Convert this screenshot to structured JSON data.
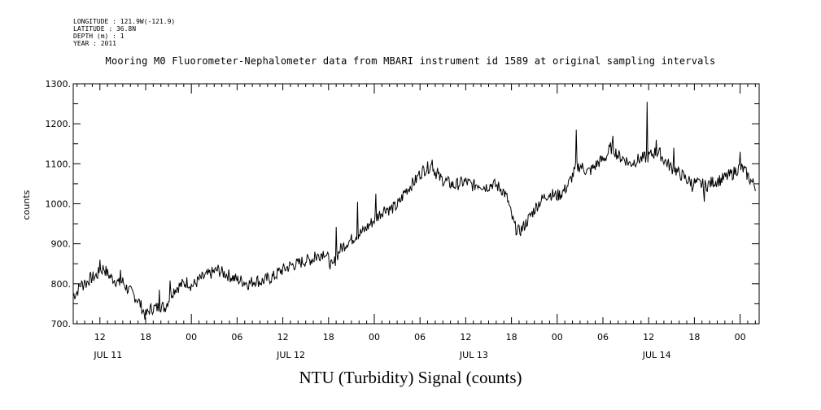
{
  "header": {
    "longitude": "LONGITUDE : 121.9W(-121.9)",
    "latitude": "LATITUDE : 36.8N",
    "depth": "DEPTH (m) : 1",
    "year": "YEAR : 2011"
  },
  "chart_data": {
    "type": "line",
    "title": "Mooring M0 Fluorometer-Nephalometer data from MBARI instrument id 1589 at original sampling intervals",
    "xlabel": "NTU (Turbidity) Signal (counts)",
    "ylabel": "counts",
    "ylim": [
      700,
      1300
    ],
    "yticks": [
      "700.",
      "800.",
      "900.",
      "1000.",
      "1100.",
      "1200.",
      "1300."
    ],
    "xlim_hours": [
      8.5,
      98.5
    ],
    "xtick_labels": [
      {
        "hour": 12,
        "label": "12"
      },
      {
        "hour": 18,
        "label": "18"
      },
      {
        "hour": 24,
        "label": "00"
      },
      {
        "hour": 30,
        "label": "06"
      },
      {
        "hour": 36,
        "label": "12"
      },
      {
        "hour": 42,
        "label": "18"
      },
      {
        "hour": 48,
        "label": "00"
      },
      {
        "hour": 54,
        "label": "06"
      },
      {
        "hour": 60,
        "label": "12"
      },
      {
        "hour": 66,
        "label": "18"
      },
      {
        "hour": 72,
        "label": "00"
      },
      {
        "hour": 78,
        "label": "06"
      },
      {
        "hour": 84,
        "label": "12"
      },
      {
        "hour": 90,
        "label": "18"
      },
      {
        "hour": 96,
        "label": "00"
      }
    ],
    "day_labels": [
      {
        "hour": 12,
        "label": "JUL 11"
      },
      {
        "hour": 36,
        "label": "JUL 12"
      },
      {
        "hour": 60,
        "label": "JUL 13"
      },
      {
        "hour": 84,
        "label": "JUL 14"
      }
    ],
    "grid": false,
    "series": [
      {
        "values": [
          [
            8.5,
            770
          ],
          [
            9.0,
            780
          ],
          [
            9.5,
            800
          ],
          [
            10.0,
            795
          ],
          [
            10.5,
            810
          ],
          [
            11.0,
            815
          ],
          [
            11.5,
            820
          ],
          [
            12.0,
            830
          ],
          [
            12.5,
            840
          ],
          [
            13.0,
            825
          ],
          [
            13.5,
            815
          ],
          [
            14.0,
            810
          ],
          [
            14.5,
            800
          ],
          [
            15.0,
            805
          ],
          [
            15.5,
            790
          ],
          [
            16.0,
            780
          ],
          [
            16.5,
            770
          ],
          [
            17.0,
            760
          ],
          [
            17.5,
            740
          ],
          [
            18.0,
            720
          ],
          [
            18.5,
            735
          ],
          [
            19.0,
            740
          ],
          [
            19.5,
            740
          ],
          [
            20.0,
            745
          ],
          [
            20.5,
            740
          ],
          [
            21.0,
            760
          ],
          [
            21.5,
            780
          ],
          [
            22.0,
            790
          ],
          [
            22.5,
            795
          ],
          [
            23.0,
            800
          ],
          [
            23.5,
            805
          ],
          [
            24.0,
            795
          ],
          [
            24.5,
            800
          ],
          [
            25.0,
            810
          ],
          [
            25.5,
            815
          ],
          [
            26.0,
            820
          ],
          [
            26.5,
            825
          ],
          [
            27.0,
            830
          ],
          [
            27.5,
            835
          ],
          [
            28.0,
            828
          ],
          [
            28.5,
            825
          ],
          [
            29.0,
            820
          ],
          [
            29.5,
            815
          ],
          [
            30.0,
            810
          ],
          [
            30.5,
            808
          ],
          [
            31.0,
            805
          ],
          [
            31.5,
            800
          ],
          [
            32.0,
            805
          ],
          [
            32.5,
            810
          ],
          [
            33.0,
            805
          ],
          [
            33.5,
            808
          ],
          [
            34.0,
            812
          ],
          [
            34.5,
            815
          ],
          [
            35.0,
            820
          ],
          [
            35.5,
            830
          ],
          [
            36.0,
            835
          ],
          [
            36.5,
            840
          ],
          [
            37.0,
            845
          ],
          [
            37.5,
            848
          ],
          [
            38.0,
            850
          ],
          [
            38.5,
            855
          ],
          [
            39.0,
            858
          ],
          [
            39.5,
            860
          ],
          [
            40.0,
            862
          ],
          [
            40.5,
            868
          ],
          [
            41.0,
            875
          ],
          [
            41.5,
            880
          ],
          [
            42.0,
            860
          ],
          [
            42.5,
            840
          ],
          [
            43.0,
            865
          ],
          [
            43.5,
            885
          ],
          [
            44.0,
            895
          ],
          [
            44.5,
            905
          ],
          [
            45.0,
            910
          ],
          [
            45.5,
            920
          ],
          [
            46.0,
            925
          ],
          [
            46.5,
            930
          ],
          [
            47.0,
            940
          ],
          [
            47.5,
            950
          ],
          [
            48.0,
            960
          ],
          [
            48.5,
            970
          ],
          [
            49.0,
            980
          ],
          [
            49.5,
            990
          ],
          [
            50.0,
            985
          ],
          [
            50.5,
            990
          ],
          [
            51.0,
            995
          ],
          [
            51.5,
            1010
          ],
          [
            52.0,
            1030
          ],
          [
            52.5,
            1040
          ],
          [
            53.0,
            1050
          ],
          [
            53.5,
            1060
          ],
          [
            54.0,
            1075
          ],
          [
            54.5,
            1085
          ],
          [
            55.0,
            1090
          ],
          [
            55.5,
            1095
          ],
          [
            56.0,
            1080
          ],
          [
            56.5,
            1065
          ],
          [
            57.0,
            1060
          ],
          [
            57.5,
            1055
          ],
          [
            58.0,
            1050
          ],
          [
            58.5,
            1045
          ],
          [
            59.0,
            1050
          ],
          [
            59.5,
            1052
          ],
          [
            60.0,
            1055
          ],
          [
            60.5,
            1050
          ],
          [
            61.0,
            1045
          ],
          [
            61.5,
            1050
          ],
          [
            62.0,
            1048
          ],
          [
            62.5,
            1042
          ],
          [
            63.0,
            1045
          ],
          [
            63.5,
            1050
          ],
          [
            64.0,
            1045
          ],
          [
            64.5,
            1040
          ],
          [
            65.0,
            1030
          ],
          [
            65.5,
            1010
          ],
          [
            66.0,
            970
          ],
          [
            66.5,
            940
          ],
          [
            67.0,
            930
          ],
          [
            67.5,
            940
          ],
          [
            68.0,
            955
          ],
          [
            68.5,
            970
          ],
          [
            69.0,
            985
          ],
          [
            69.5,
            1000
          ],
          [
            70.0,
            1010
          ],
          [
            70.5,
            1020
          ],
          [
            71.0,
            1025
          ],
          [
            71.5,
            1022
          ],
          [
            72.0,
            1020
          ],
          [
            72.5,
            1025
          ],
          [
            73.0,
            1035
          ],
          [
            73.5,
            1050
          ],
          [
            74.0,
            1070
          ],
          [
            74.5,
            1090
          ],
          [
            75.0,
            1095
          ],
          [
            75.5,
            1088
          ],
          [
            76.0,
            1080
          ],
          [
            76.5,
            1085
          ],
          [
            77.0,
            1095
          ],
          [
            77.5,
            1105
          ],
          [
            78.0,
            1110
          ],
          [
            78.5,
            1120
          ],
          [
            79.0,
            1140
          ],
          [
            79.5,
            1135
          ],
          [
            80.0,
            1120
          ],
          [
            80.5,
            1115
          ],
          [
            81.0,
            1110
          ],
          [
            81.5,
            1100
          ],
          [
            82.0,
            1105
          ],
          [
            82.5,
            1110
          ],
          [
            83.0,
            1112
          ],
          [
            83.5,
            1115
          ],
          [
            84.0,
            1118
          ],
          [
            84.5,
            1125
          ],
          [
            85.0,
            1130
          ],
          [
            85.5,
            1125
          ],
          [
            86.0,
            1110
          ],
          [
            86.5,
            1100
          ],
          [
            87.0,
            1090
          ],
          [
            87.5,
            1085
          ],
          [
            88.0,
            1075
          ],
          [
            88.5,
            1070
          ],
          [
            89.0,
            1060
          ],
          [
            89.5,
            1055
          ],
          [
            90.0,
            1052
          ],
          [
            90.5,
            1050
          ],
          [
            91.0,
            1048
          ],
          [
            91.5,
            1045
          ],
          [
            92.0,
            1050
          ],
          [
            92.5,
            1055
          ],
          [
            93.0,
            1058
          ],
          [
            93.5,
            1060
          ],
          [
            94.0,
            1065
          ],
          [
            94.5,
            1070
          ],
          [
            95.0,
            1075
          ],
          [
            95.5,
            1085
          ],
          [
            96.0,
            1090
          ],
          [
            96.5,
            1085
          ],
          [
            97.0,
            1070
          ],
          [
            97.5,
            1055
          ],
          [
            98.0,
            1045
          ]
        ],
        "spikes": [
          [
            10.0,
            810
          ],
          [
            12.0,
            860
          ],
          [
            14.7,
            835
          ],
          [
            19.8,
            785
          ],
          [
            21.2,
            808
          ],
          [
            40.2,
            880
          ],
          [
            43.0,
            942
          ],
          [
            45.8,
            1005
          ],
          [
            48.2,
            1025
          ],
          [
            53.8,
            1075
          ],
          [
            55.6,
            1110
          ],
          [
            56.3,
            1090
          ],
          [
            74.5,
            1185
          ],
          [
            79.3,
            1170
          ],
          [
            83.8,
            1255
          ],
          [
            85.0,
            1160
          ],
          [
            87.3,
            1140
          ],
          [
            89.7,
            1030
          ],
          [
            91.3,
            1005
          ],
          [
            96.0,
            1130
          ]
        ]
      }
    ]
  }
}
